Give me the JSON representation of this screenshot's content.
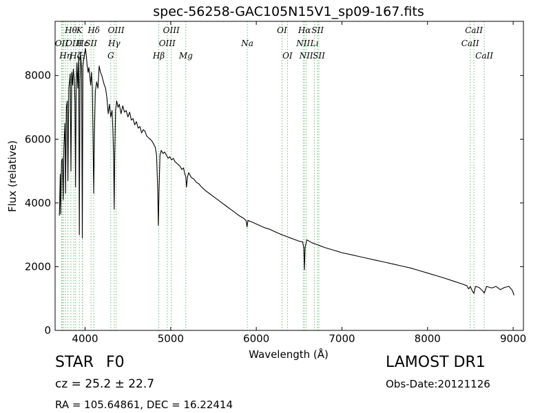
{
  "chart_data": {
    "type": "line",
    "title": "spec-56258-GAC105N15V1_sp09-167.fits",
    "xlabel": "Wavelength (Å)",
    "ylabel": "Flux (relative)",
    "xlim": [
      3650,
      9120
    ],
    "ylim": [
      0,
      9700
    ],
    "xticks": [
      4000,
      5000,
      6000,
      7000,
      8000,
      9000
    ],
    "yticks": [
      0,
      2000,
      4000,
      6000,
      8000
    ],
    "grid": false,
    "line_color": "#000000",
    "marker_color": "#66bb66",
    "series": [
      {
        "values_note": "",
        "points": [
          [
            3700,
            3600
          ],
          [
            3710,
            4900
          ],
          [
            3715,
            3650
          ],
          [
            3725,
            5300
          ],
          [
            3735,
            5400
          ],
          [
            3745,
            4100
          ],
          [
            3752,
            5700
          ],
          [
            3765,
            6500
          ],
          [
            3772,
            4300
          ],
          [
            3782,
            7000
          ],
          [
            3792,
            7200
          ],
          [
            3800,
            4700
          ],
          [
            3810,
            7600
          ],
          [
            3818,
            7800
          ],
          [
            3826,
            8050
          ],
          [
            3835,
            5000
          ],
          [
            3845,
            8100
          ],
          [
            3855,
            7700
          ],
          [
            3862,
            8200
          ],
          [
            3874,
            7900
          ],
          [
            3882,
            7200
          ],
          [
            3889,
            4500
          ],
          [
            3896,
            7700
          ],
          [
            3905,
            8400
          ],
          [
            3915,
            7600
          ],
          [
            3925,
            8600
          ],
          [
            3933,
            3000
          ],
          [
            3941,
            7800
          ],
          [
            3950,
            8600
          ],
          [
            3960,
            8200
          ],
          [
            3968,
            2900
          ],
          [
            3975,
            8300
          ],
          [
            3985,
            8500
          ],
          [
            3995,
            8700
          ],
          [
            4005,
            8850
          ],
          [
            4015,
            8600
          ],
          [
            4025,
            8300
          ],
          [
            4035,
            8100
          ],
          [
            4045,
            8250
          ],
          [
            4055,
            8000
          ],
          [
            4065,
            7700
          ],
          [
            4075,
            8100
          ],
          [
            4085,
            7600
          ],
          [
            4093,
            6000
          ],
          [
            4101,
            4300
          ],
          [
            4109,
            6200
          ],
          [
            4120,
            7500
          ],
          [
            4135,
            7800
          ],
          [
            4150,
            7600
          ],
          [
            4165,
            8300
          ],
          [
            4180,
            8100
          ],
          [
            4195,
            8000
          ],
          [
            4210,
            7850
          ],
          [
            4225,
            7700
          ],
          [
            4240,
            7600
          ],
          [
            4255,
            7300
          ],
          [
            4270,
            6800
          ],
          [
            4285,
            7100
          ],
          [
            4300,
            6700
          ],
          [
            4315,
            6900
          ],
          [
            4325,
            6300
          ],
          [
            4333,
            5500
          ],
          [
            4340,
            3800
          ],
          [
            4347,
            5500
          ],
          [
            4356,
            6900
          ],
          [
            4370,
            7200
          ],
          [
            4385,
            7000
          ],
          [
            4400,
            7100
          ],
          [
            4420,
            6800
          ],
          [
            4440,
            7050
          ],
          [
            4460,
            6850
          ],
          [
            4480,
            6900
          ],
          [
            4500,
            6700
          ],
          [
            4520,
            6850
          ],
          [
            4540,
            6600
          ],
          [
            4560,
            6650
          ],
          [
            4580,
            6450
          ],
          [
            4600,
            6550
          ],
          [
            4620,
            6350
          ],
          [
            4640,
            6400
          ],
          [
            4660,
            6200
          ],
          [
            4680,
            6300
          ],
          [
            4700,
            6250
          ],
          [
            4720,
            6100
          ],
          [
            4740,
            6050
          ],
          [
            4760,
            6000
          ],
          [
            4780,
            5950
          ],
          [
            4800,
            5850
          ],
          [
            4820,
            5750
          ],
          [
            4835,
            5500
          ],
          [
            4848,
            4500
          ],
          [
            4856,
            3300
          ],
          [
            4864,
            4400
          ],
          [
            4875,
            5500
          ],
          [
            4890,
            5650
          ],
          [
            4910,
            5550
          ],
          [
            4930,
            5600
          ],
          [
            4950,
            5500
          ],
          [
            4970,
            5400
          ],
          [
            4990,
            5450
          ],
          [
            5010,
            5350
          ],
          [
            5030,
            5400
          ],
          [
            5050,
            5300
          ],
          [
            5070,
            5250
          ],
          [
            5090,
            5200
          ],
          [
            5110,
            5150
          ],
          [
            5130,
            5050
          ],
          [
            5150,
            5100
          ],
          [
            5165,
            4900
          ],
          [
            5175,
            4850
          ],
          [
            5185,
            4500
          ],
          [
            5195,
            4800
          ],
          [
            5210,
            4950
          ],
          [
            5240,
            4800
          ],
          [
            5270,
            4750
          ],
          [
            5300,
            4650
          ],
          [
            5330,
            4600
          ],
          [
            5360,
            4500
          ],
          [
            5400,
            4400
          ],
          [
            5450,
            4300
          ],
          [
            5500,
            4200
          ],
          [
            5550,
            4100
          ],
          [
            5600,
            4000
          ],
          [
            5650,
            3900
          ],
          [
            5700,
            3800
          ],
          [
            5750,
            3700
          ],
          [
            5800,
            3600
          ],
          [
            5850,
            3520
          ],
          [
            5880,
            3450
          ],
          [
            5892,
            3250
          ],
          [
            5902,
            3450
          ],
          [
            5950,
            3400
          ],
          [
            6000,
            3340
          ],
          [
            6050,
            3280
          ],
          [
            6100,
            3220
          ],
          [
            6150,
            3180
          ],
          [
            6200,
            3120
          ],
          [
            6250,
            3060
          ],
          [
            6300,
            3000
          ],
          [
            6350,
            2950
          ],
          [
            6400,
            2900
          ],
          [
            6450,
            2850
          ],
          [
            6500,
            2800
          ],
          [
            6540,
            2780
          ],
          [
            6555,
            2600
          ],
          [
            6562,
            1900
          ],
          [
            6570,
            2600
          ],
          [
            6590,
            2840
          ],
          [
            6650,
            2750
          ],
          [
            6700,
            2700
          ],
          [
            6750,
            2650
          ],
          [
            6800,
            2600
          ],
          [
            6850,
            2560
          ],
          [
            6900,
            2520
          ],
          [
            6950,
            2480
          ],
          [
            7000,
            2440
          ],
          [
            7100,
            2380
          ],
          [
            7200,
            2320
          ],
          [
            7300,
            2260
          ],
          [
            7400,
            2200
          ],
          [
            7500,
            2140
          ],
          [
            7600,
            2080
          ],
          [
            7700,
            2020
          ],
          [
            7800,
            1960
          ],
          [
            7900,
            1880
          ],
          [
            8000,
            1800
          ],
          [
            8100,
            1720
          ],
          [
            8200,
            1640
          ],
          [
            8300,
            1550
          ],
          [
            8400,
            1460
          ],
          [
            8460,
            1400
          ],
          [
            8480,
            1300
          ],
          [
            8500,
            1380
          ],
          [
            8520,
            1250
          ],
          [
            8542,
            1160
          ],
          [
            8560,
            1380
          ],
          [
            8600,
            1350
          ],
          [
            8640,
            1250
          ],
          [
            8662,
            1170
          ],
          [
            8690,
            1380
          ],
          [
            8750,
            1330
          ],
          [
            8800,
            1380
          ],
          [
            8850,
            1280
          ],
          [
            8900,
            1350
          ],
          [
            8950,
            1380
          ],
          [
            8990,
            1260
          ],
          [
            9010,
            1100
          ]
        ]
      }
    ],
    "line_markers": [
      {
        "x": 3727,
        "label": "OII",
        "row": 1
      },
      {
        "x": 3734,
        "label": "",
        "row": -1
      },
      {
        "x": 3750,
        "label": "",
        "row": -1
      },
      {
        "x": 3771,
        "label": "Hη",
        "row": 2
      },
      {
        "x": 3798,
        "label": "",
        "row": -1
      },
      {
        "x": 3835,
        "label": "Hθ",
        "row": 0
      },
      {
        "x": 3869,
        "label": "OIII",
        "row": 1
      },
      {
        "x": 3889,
        "label": "Hζ",
        "row": 2
      },
      {
        "x": 3934,
        "label": "K",
        "row": 0
      },
      {
        "x": 3969,
        "label": "H",
        "row": 2
      },
      {
        "x": 3970,
        "label": "Hε",
        "row": 1
      },
      {
        "x": 4069,
        "label": "SII",
        "row": 1
      },
      {
        "x": 4102,
        "label": "Hδ",
        "row": 0
      },
      {
        "x": 4300,
        "label": "G",
        "row": 2
      },
      {
        "x": 4340,
        "label": "Hγ",
        "row": 1
      },
      {
        "x": 4363,
        "label": "OIII",
        "row": 0
      },
      {
        "x": 4861,
        "label": "Hβ",
        "row": 2
      },
      {
        "x": 4959,
        "label": "OIII",
        "row": 1
      },
      {
        "x": 5007,
        "label": "OIII",
        "row": 0
      },
      {
        "x": 5177,
        "label": "Mg",
        "row": 2
      },
      {
        "x": 5895,
        "label": "Na",
        "row": 1
      },
      {
        "x": 6300,
        "label": "OI",
        "row": 0
      },
      {
        "x": 6364,
        "label": "OI",
        "row": 2
      },
      {
        "x": 6548,
        "label": "NII",
        "row": 1
      },
      {
        "x": 6563,
        "label": "Hα",
        "row": 0
      },
      {
        "x": 6583,
        "label": "NII",
        "row": 2
      },
      {
        "x": 6678,
        "label": "Lı",
        "row": 1
      },
      {
        "x": 6716,
        "label": "SII",
        "row": 0
      },
      {
        "x": 6731,
        "label": "SII",
        "row": 2
      },
      {
        "x": 8498,
        "label": "CaII",
        "row": 1
      },
      {
        "x": 8542,
        "label": "CaII",
        "row": 0
      },
      {
        "x": 8662,
        "label": "CaII",
        "row": 2
      }
    ]
  },
  "info": {
    "object_class": "STAR",
    "subclass": "F0",
    "redshift_text": "cz = 25.2  ± 22.7",
    "coords_text": "RA = 105.64861, DEC = 16.22414",
    "survey": "LAMOST DR1",
    "obs_date": "Obs-Date:20121126"
  }
}
